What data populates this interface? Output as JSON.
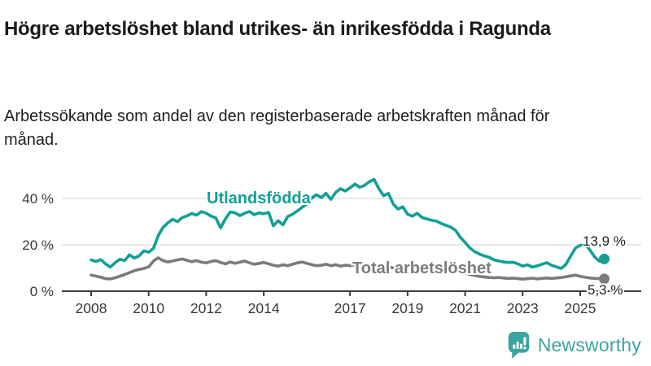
{
  "header": {
    "title": "Högre arbetslöshet bland utrikes- än inrikesfödda i Ragunda",
    "subtitle": "Arbetssökande som andel av den registerbaserade arbetskraften månad för månad."
  },
  "annotations": {
    "series_label_foreign": "Utlandsfödda",
    "series_label_total": "Total arbetslöshet",
    "end_label_foreign": "13,9 %",
    "end_label_total": "5,3 %"
  },
  "footer": {
    "brand": "Newsworthy",
    "brand_color": "#3BA5A1",
    "logo_icon": "bar-chart-speech-bubble-icon"
  },
  "colors": {
    "foreign_line": "#12A096",
    "total_line": "#7b7b7b",
    "gridline": "#d9d9d9",
    "axis": "#3c3c3c",
    "tick_text": "#383838"
  },
  "chart_data": {
    "type": "line",
    "title": "Högre arbetslöshet bland utrikes- än inrikesfödda i Ragunda",
    "subtitle": "Arbetssökande som andel av den registerbaserade arbetskraften månad för månad.",
    "unit": "%",
    "x_start": 2008.0,
    "x_step_years": 0.1667,
    "ylim": [
      0,
      52
    ],
    "grid": true,
    "x_ticks": [
      {
        "value": 2008,
        "label": "2008"
      },
      {
        "value": 2010,
        "label": "2010"
      },
      {
        "value": 2012,
        "label": "2012"
      },
      {
        "value": 2014,
        "label": "2014"
      },
      {
        "value": 2017,
        "label": "2017"
      },
      {
        "value": 2019,
        "label": "2019"
      },
      {
        "value": 2021,
        "label": "2021"
      },
      {
        "value": 2023,
        "label": "2023"
      },
      {
        "value": 2025,
        "label": "2025"
      }
    ],
    "y_ticks": [
      {
        "value": 0,
        "label": "0 %"
      },
      {
        "value": 20,
        "label": "20 %"
      },
      {
        "value": 40,
        "label": "40 %"
      }
    ],
    "series": [
      {
        "name": "Utlandsfödda",
        "color": "#12A096",
        "end_value": 13.9,
        "end_label": "13,9 %",
        "values": [
          13.5,
          12.8,
          13.6,
          11.8,
          10.4,
          12.3,
          13.8,
          13.2,
          15.7,
          14.3,
          15.2,
          17.4,
          16.8,
          18.5,
          24.0,
          27.5,
          29.5,
          31.0,
          30.0,
          31.8,
          32.5,
          33.5,
          32.8,
          34.3,
          33.6,
          32.4,
          31.6,
          27.3,
          31.2,
          34.2,
          33.8,
          32.6,
          33.6,
          34.4,
          33.0,
          33.8,
          33.4,
          34.0,
          28.2,
          30.4,
          28.6,
          32.2,
          33.2,
          34.6,
          36.2,
          37.6,
          40.2,
          41.6,
          40.4,
          42.2,
          39.6,
          42.6,
          44.2,
          43.2,
          44.6,
          46.2,
          44.8,
          45.6,
          47.2,
          48.2,
          44.2,
          41.2,
          42.2,
          37.6,
          35.4,
          36.4,
          33.2,
          32.4,
          33.6,
          31.8,
          31.2,
          30.6,
          30.2,
          29.2,
          28.4,
          27.6,
          26.2,
          23.2,
          21.0,
          18.6,
          17.0,
          16.0,
          15.2,
          14.6,
          13.5,
          13.0,
          12.6,
          12.4,
          12.5,
          11.8,
          10.8,
          11.4,
          10.4,
          10.9,
          11.6,
          12.3,
          11.2,
          10.5,
          9.8,
          11.5,
          15.2,
          18.6,
          19.8,
          20.3,
          17.8,
          14.8,
          12.9,
          13.9
        ]
      },
      {
        "name": "Total arbetslöshet",
        "color": "#7b7b7b",
        "end_value": 5.3,
        "end_label": "5,3 %",
        "values": [
          7.0,
          6.5,
          6.0,
          5.4,
          5.3,
          5.8,
          6.5,
          7.2,
          8.0,
          8.8,
          9.4,
          9.8,
          10.5,
          13.0,
          14.4,
          13.2,
          12.6,
          13.0,
          13.5,
          13.9,
          13.3,
          12.7,
          13.2,
          12.5,
          12.2,
          12.8,
          13.2,
          12.4,
          11.8,
          12.6,
          12.0,
          12.5,
          13.0,
          12.2,
          11.6,
          12.0,
          12.4,
          11.8,
          11.2,
          10.8,
          11.4,
          11.0,
          11.6,
          12.2,
          12.6,
          12.0,
          11.4,
          11.0,
          11.2,
          11.6,
          11.0,
          11.4,
          10.8,
          11.2,
          11.0,
          11.4,
          10.8,
          10.4,
          10.7,
          11.0,
          10.6,
          10.2,
          10.5,
          10.0,
          9.8,
          10.2,
          10.4,
          10.0,
          9.7,
          9.4,
          9.6,
          9.8,
          10.0,
          10.4,
          10.2,
          9.6,
          9.0,
          8.4,
          7.8,
          7.2,
          6.8,
          6.4,
          6.1,
          5.9,
          5.8,
          5.9,
          5.7,
          5.5,
          5.6,
          5.4,
          5.2,
          5.4,
          5.6,
          5.3,
          5.5,
          5.7,
          5.5,
          5.7,
          5.9,
          6.2,
          6.6,
          6.9,
          6.4,
          6.0,
          5.7,
          5.5,
          5.4,
          5.3
        ]
      }
    ]
  }
}
